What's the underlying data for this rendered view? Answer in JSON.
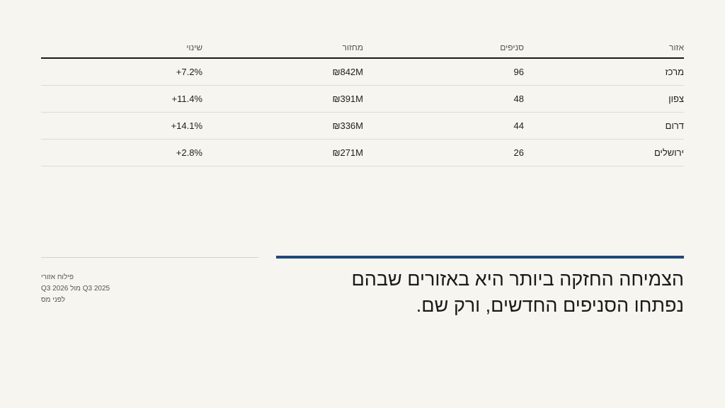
{
  "table": {
    "headers": {
      "region": "אזור",
      "branches": "סניפים",
      "revenue": "מחזור",
      "change": "שינוי"
    },
    "rows": [
      {
        "region": "מרכז",
        "branches": "96",
        "revenue": "₪842M",
        "change": "+7.2%"
      },
      {
        "region": "צפון",
        "branches": "48",
        "revenue": "₪391M",
        "change": "+11.4%"
      },
      {
        "region": "דרום",
        "branches": "44",
        "revenue": "₪336M",
        "change": "+14.1%"
      },
      {
        "region": "ירושלים",
        "branches": "26",
        "revenue": "₪271M",
        "change": "+2.8%"
      }
    ]
  },
  "footnote": {
    "line1": "פילוח אזורי",
    "line2": "Q3 2025 מול Q3 2026",
    "line3": "לפני מס"
  },
  "headline": {
    "line1": "הצמיחה החזקה ביותר היא באזורים שבהם",
    "line2": "נפתחו הסניפים החדשים, ורק שם."
  },
  "colors": {
    "background": "#f6f5ef",
    "accent": "#1f4a7a"
  }
}
